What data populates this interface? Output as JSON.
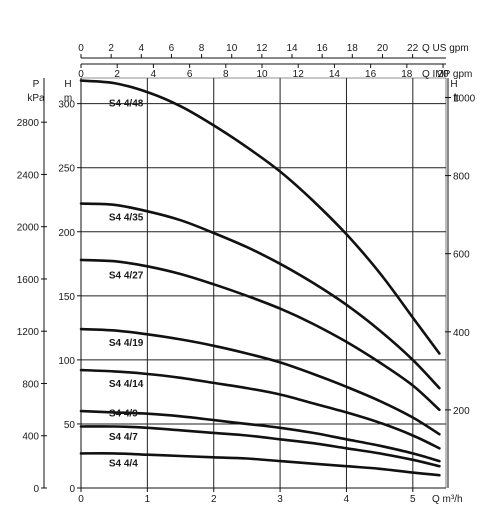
{
  "chart_data": {
    "type": "line",
    "x_units": "Q m³/h",
    "xlim": [
      0,
      5.5
    ],
    "x_ticks": [
      0,
      1,
      2,
      3,
      4,
      5
    ],
    "x_tick_labels": [
      "0",
      "1",
      "2",
      "3",
      "4",
      "5"
    ],
    "x_label": "Q m³/h",
    "top_axes": [
      {
        "label": "Q US gpm",
        "factor": 4.4029,
        "ticks": [
          0,
          2,
          4,
          6,
          8,
          10,
          12,
          14,
          16,
          18,
          20,
          22
        ],
        "tick_labels": [
          "0",
          "2",
          "4",
          "6",
          "8",
          "10",
          "12",
          "14",
          "16",
          "18",
          "20",
          "22"
        ]
      },
      {
        "label": "Q IMP gpm",
        "factor": 3.6662,
        "ticks": [
          0,
          2,
          4,
          6,
          8,
          10,
          12,
          14,
          16,
          18,
          20
        ],
        "tick_labels": [
          "0",
          "2",
          "4",
          "6",
          "8",
          "10",
          "12",
          "14",
          "16",
          "18",
          "20"
        ]
      }
    ],
    "y_units": "H m",
    "ylim": [
      0,
      320
    ],
    "y_ticks": [
      0,
      50,
      100,
      150,
      200,
      250,
      300
    ],
    "y_tick_labels": [
      "0",
      "50",
      "100",
      "150",
      "200",
      "250",
      "300"
    ],
    "left_outer_axis": {
      "label_top": "P",
      "label_bottom": "kPa",
      "factor": 0.10197,
      "ticks": [
        0,
        400,
        800,
        1200,
        1600,
        2000,
        2400,
        2800
      ],
      "tick_labels": [
        "0",
        "400",
        "800",
        "1200",
        "1600",
        "2000",
        "2400",
        "2800"
      ]
    },
    "left_inner_axis_label": {
      "top": "H",
      "bottom": "m"
    },
    "right_axis": {
      "label_top": "H",
      "label_bottom": "ft",
      "factor": 0.3048,
      "ticks": [
        200,
        400,
        600,
        800,
        1000
      ],
      "tick_labels": [
        "200",
        "400",
        "600",
        "800",
        "1000"
      ]
    },
    "grid": true,
    "series": [
      {
        "name": "S4 4/48",
        "x": [
          0,
          0.5,
          1,
          1.5,
          2,
          2.5,
          3,
          3.5,
          4,
          4.5,
          5,
          5.4
        ],
        "y": [
          318,
          316,
          309,
          298,
          283,
          266,
          247,
          224,
          198,
          168,
          133,
          105
        ],
        "label_x": 0.45,
        "label_y": 300
      },
      {
        "name": "S4 4/35",
        "x": [
          0,
          0.5,
          1,
          1.5,
          2,
          2.5,
          3,
          3.5,
          4,
          4.5,
          5,
          5.4
        ],
        "y": [
          222,
          221,
          216,
          209,
          199,
          188,
          175,
          160,
          143,
          123,
          100,
          78
        ],
        "label_x": 0.45,
        "label_y": 211
      },
      {
        "name": "S4 4/27",
        "x": [
          0,
          0.5,
          1,
          1.5,
          2,
          2.5,
          3,
          3.5,
          4,
          4.5,
          5,
          5.4
        ],
        "y": [
          178,
          177,
          173,
          167,
          159,
          150,
          140,
          128,
          114,
          98,
          80,
          61
        ],
        "label_x": 0.45,
        "label_y": 166
      },
      {
        "name": "S4 4/19",
        "x": [
          0,
          0.5,
          1,
          1.5,
          2,
          2.5,
          3,
          3.5,
          4,
          4.5,
          5,
          5.4
        ],
        "y": [
          124,
          123,
          120,
          116,
          111,
          105,
          98,
          89,
          79,
          68,
          55,
          42
        ],
        "label_x": 0.45,
        "label_y": 113
      },
      {
        "name": "S4 4/14",
        "x": [
          0,
          0.5,
          1,
          1.5,
          2,
          2.5,
          3,
          3.5,
          4,
          4.5,
          5,
          5.4
        ],
        "y": [
          92,
          91,
          89,
          86,
          82,
          78,
          73,
          66,
          59,
          51,
          41,
          31
        ],
        "label_x": 0.45,
        "label_y": 81
      },
      {
        "name": "S4 4/9",
        "x": [
          0,
          0.5,
          1,
          1.5,
          2,
          2.5,
          3,
          3.5,
          4,
          4.5,
          5,
          5.4
        ],
        "y": [
          60,
          59,
          58,
          56,
          53,
          50,
          47,
          43,
          38,
          33,
          27,
          21
        ],
        "label_x": 0.45,
        "label_y": 58
      },
      {
        "name": "S4 4/7",
        "x": [
          0,
          0.5,
          1,
          1.5,
          2,
          2.5,
          3,
          3.5,
          4,
          4.5,
          5,
          5.4
        ],
        "y": [
          48,
          48,
          47,
          45,
          43,
          41,
          38,
          35,
          31,
          27,
          22,
          17
        ],
        "label_x": 0.45,
        "label_y": 40
      },
      {
        "name": "S4 4/4",
        "x": [
          0,
          0.5,
          1,
          1.5,
          2,
          2.5,
          3,
          3.5,
          4,
          4.5,
          5,
          5.4
        ],
        "y": [
          27,
          27,
          26,
          25,
          24,
          23,
          21,
          19,
          17,
          15,
          12,
          10
        ],
        "label_x": 0.45,
        "label_y": 19
      }
    ]
  }
}
